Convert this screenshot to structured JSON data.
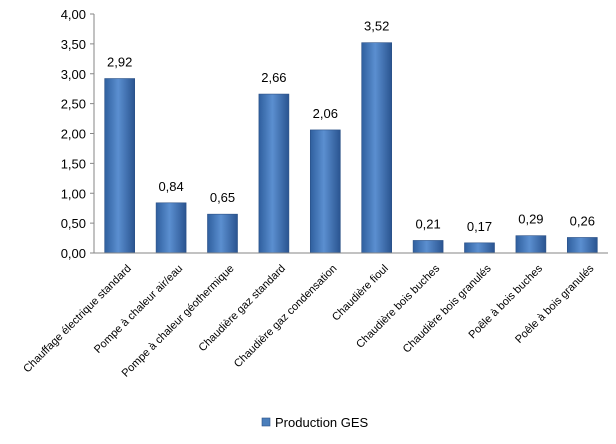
{
  "chart_data": {
    "type": "bar",
    "categories": [
      "Chauffage électrique standard",
      "Pompe à chaleur air/eau",
      "Pompe à chaleur géothermique",
      "Chaudière gaz standard",
      "Chaudière gaz condensation",
      "Chaudière fioul",
      "Chaudière bois buches",
      "Chaudière bois granulés",
      "Poêle à bois buches",
      "Poêle à bois granulés"
    ],
    "series": [
      {
        "name": "Production GES",
        "values": [
          2.92,
          0.84,
          0.65,
          2.66,
          2.06,
          3.52,
          0.21,
          0.17,
          0.29,
          0.26
        ],
        "labels": [
          "2,92",
          "0,84",
          "0,65",
          "2,66",
          "2,06",
          "3,52",
          "0,21",
          "0,17",
          "0,29",
          "0,26"
        ],
        "color": "#4a7ebb"
      }
    ],
    "yticks": [
      "0,00",
      "0,50",
      "1,00",
      "1,50",
      "2,00",
      "2,50",
      "3,00",
      "3,50",
      "4,00"
    ],
    "ylim": [
      0,
      4
    ],
    "grid": false,
    "legend_position": "bottom",
    "axis_color": "#868686"
  }
}
